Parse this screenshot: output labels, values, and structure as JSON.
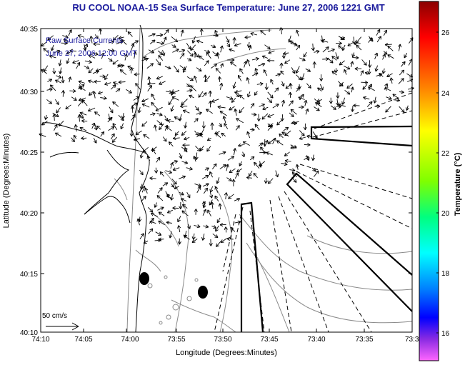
{
  "title": "RU COOL   NOAA-15  Sea Surface Temperature:  June 27, 2006 1221 GMT",
  "legend": {
    "line1": "Raw Surface Currents",
    "line2": "June 27, 2006 12:00 GMT"
  },
  "axes": {
    "xlabel": "Longitude (Degrees:Minutes)",
    "ylabel": "Latitude (Degrees:Minutes)",
    "xticks": [
      "74:10",
      "74:05",
      "74:00",
      "73:55",
      "73:50",
      "73:45",
      "73:40",
      "73:35",
      "73:3"
    ],
    "yticks": [
      "40:35",
      "40:30",
      "40:25",
      "40:20",
      "40:15",
      "40:10"
    ]
  },
  "scale_arrow": {
    "label": "50 cm/s"
  },
  "colorbar": {
    "label": "Temperature (°C)",
    "ticks": [
      "26",
      "24",
      "22",
      "20",
      "18",
      "16"
    ],
    "range": [
      15.5,
      27.2
    ]
  },
  "colors": {
    "title": "#1a1a9c",
    "arrows": "#000000",
    "coast": "#000000",
    "contours": "#8a8a8a"
  }
}
